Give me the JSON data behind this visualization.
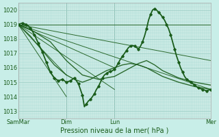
{
  "background_color": "#c8eee8",
  "plot_bg_color": "#cceae4",
  "grid_color_major": "#99ccc4",
  "grid_color_minor": "#aaddd6",
  "line_color": "#1a5c1a",
  "xlabel": "Pression niveau de la mer( hPa )",
  "ylim": [
    1012.5,
    1020.5
  ],
  "yticks": [
    1013,
    1014,
    1015,
    1016,
    1017,
    1018,
    1019,
    1020
  ],
  "xlim": [
    0,
    96
  ],
  "xtick_positions": [
    0,
    24,
    48,
    96
  ],
  "xtick_labels": [
    "SamMar",
    "Dim",
    "Lun",
    "Mer"
  ],
  "figsize": [
    3.2,
    2.0
  ],
  "dpi": 100,
  "straight_lines": [
    {
      "x0": 0,
      "y0": 1019.0,
      "x1": 96,
      "y1": 1019.0
    },
    {
      "x0": 0,
      "y0": 1019.0,
      "x1": 96,
      "y1": 1016.5
    },
    {
      "x0": 0,
      "y0": 1019.0,
      "x1": 96,
      "y1": 1014.5
    },
    {
      "x0": 0,
      "y0": 1019.0,
      "x1": 48,
      "y1": 1016.0
    },
    {
      "x0": 0,
      "y0": 1019.0,
      "x1": 48,
      "y1": 1014.5
    },
    {
      "x0": 0,
      "y0": 1019.0,
      "x1": 24,
      "y1": 1015.5
    },
    {
      "x0": 0,
      "y0": 1019.0,
      "x1": 24,
      "y1": 1014.0
    }
  ],
  "main_curve_x": [
    0,
    1,
    2,
    3,
    4,
    5,
    6,
    7,
    8,
    9,
    10,
    11,
    12,
    13,
    14,
    15,
    16,
    17,
    18,
    19,
    20,
    21,
    22,
    23,
    24,
    25,
    26,
    27,
    28,
    29,
    30,
    31,
    32,
    33,
    34,
    35,
    36,
    37,
    38,
    39,
    40,
    41,
    42,
    43,
    44,
    45,
    46,
    47,
    48,
    49,
    50,
    51,
    52,
    53,
    54,
    55,
    56,
    57,
    58,
    59,
    60,
    61,
    62,
    63,
    64,
    65,
    66,
    67,
    68,
    69,
    70,
    71,
    72,
    73,
    74,
    75,
    76,
    77,
    78,
    79,
    80,
    81,
    82,
    83,
    84,
    85,
    86,
    87,
    88,
    89,
    90,
    91,
    92,
    93,
    94,
    95,
    96
  ],
  "main_curve_y": [
    1019.0,
    1019.05,
    1019.1,
    1019.05,
    1019.0,
    1018.9,
    1018.75,
    1018.55,
    1018.3,
    1018.0,
    1017.7,
    1017.4,
    1017.1,
    1016.75,
    1016.4,
    1016.05,
    1015.7,
    1015.5,
    1015.3,
    1015.2,
    1015.1,
    1015.15,
    1015.2,
    1015.1,
    1015.0,
    1015.05,
    1015.1,
    1015.2,
    1015.3,
    1015.1,
    1014.9,
    1014.5,
    1014.1,
    1013.3,
    1013.5,
    1013.7,
    1013.8,
    1014.0,
    1014.2,
    1014.5,
    1014.7,
    1015.0,
    1015.3,
    1015.5,
    1015.6,
    1015.7,
    1015.75,
    1015.8,
    1015.9,
    1016.1,
    1016.35,
    1016.6,
    1016.8,
    1017.0,
    1017.2,
    1017.4,
    1017.5,
    1017.55,
    1017.5,
    1017.4,
    1017.3,
    1017.5,
    1017.8,
    1018.2,
    1018.7,
    1019.3,
    1019.7,
    1020.0,
    1020.1,
    1020.0,
    1019.85,
    1019.7,
    1019.5,
    1019.3,
    1019.0,
    1018.7,
    1018.3,
    1017.8,
    1017.3,
    1016.8,
    1016.4,
    1016.0,
    1015.7,
    1015.4,
    1015.2,
    1015.1,
    1015.0,
    1014.9,
    1014.8,
    1014.7,
    1014.6,
    1014.55,
    1014.5,
    1014.45,
    1014.4,
    1014.45,
    1014.5
  ],
  "extra_curves": [
    {
      "points": [
        [
          0,
          1019.0
        ],
        [
          8,
          1018.5
        ],
        [
          16,
          1017.8
        ],
        [
          24,
          1016.5
        ],
        [
          32,
          1015.5
        ],
        [
          40,
          1015.2
        ],
        [
          48,
          1015.4
        ],
        [
          56,
          1016.0
        ],
        [
          60,
          1016.3
        ],
        [
          64,
          1016.5
        ],
        [
          68,
          1016.2
        ],
        [
          72,
          1015.8
        ],
        [
          80,
          1015.3
        ],
        [
          88,
          1015.0
        ],
        [
          96,
          1014.8
        ]
      ],
      "linewidth": 1.0,
      "style": "solid"
    },
    {
      "points": [
        [
          0,
          1019.0
        ],
        [
          6,
          1018.2
        ],
        [
          12,
          1017.2
        ],
        [
          18,
          1016.2
        ],
        [
          24,
          1015.5
        ],
        [
          28,
          1015.2
        ],
        [
          32,
          1015.0
        ],
        [
          36,
          1015.2
        ],
        [
          40,
          1015.5
        ],
        [
          44,
          1015.8
        ],
        [
          48,
          1016.0
        ],
        [
          52,
          1016.2
        ],
        [
          56,
          1016.3
        ],
        [
          60,
          1016.2
        ],
        [
          64,
          1016.0
        ],
        [
          68,
          1015.7
        ],
        [
          72,
          1015.4
        ],
        [
          80,
          1015.0
        ],
        [
          88,
          1014.7
        ],
        [
          96,
          1014.5
        ]
      ],
      "linewidth": 1.0,
      "style": "solid"
    }
  ]
}
